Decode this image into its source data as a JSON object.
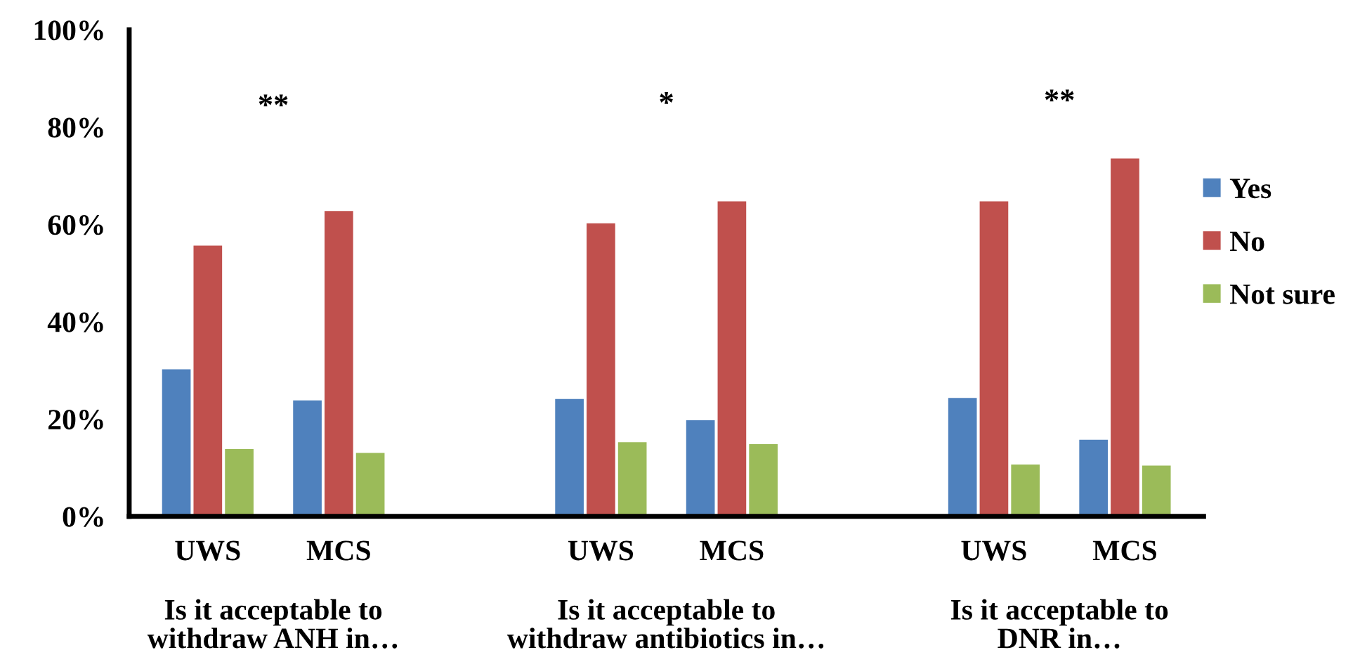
{
  "chart_data": {
    "type": "bar",
    "categories": [
      "UWS",
      "MCS",
      null,
      "UWS",
      "MCS",
      null,
      "UWS",
      "MCS"
    ],
    "series": [
      {
        "name": "Yes",
        "color": "#4f81bd",
        "values": [
          30.4,
          24.0,
          null,
          24.3,
          19.9,
          null,
          24.5,
          15.9
        ]
      },
      {
        "name": "No",
        "color": "#c0504d",
        "values": [
          55.8,
          62.9,
          null,
          60.4,
          64.9,
          null,
          64.9,
          73.7
        ]
      },
      {
        "name": "Not sure",
        "color": "#9bbb59",
        "values": [
          14.0,
          13.2,
          null,
          15.4,
          15.0,
          null,
          10.8,
          10.6
        ]
      }
    ],
    "ylim": [
      0,
      100
    ],
    "yticks": [
      {
        "value": 0,
        "label": "0%"
      },
      {
        "value": 20,
        "label": "20%"
      },
      {
        "value": 40,
        "label": "40%"
      },
      {
        "value": 60,
        "label": "60%"
      },
      {
        "value": 80,
        "label": "80%"
      },
      {
        "value": 100,
        "label": "100%"
      }
    ],
    "annotations": [
      "**",
      "*",
      "**",
      "Is it acceptable to\nwithdraw ANH in…",
      "Is it acceptable to\nwithdraw antibiotics in…",
      "Is it acceptable to\nDNR in…"
    ],
    "grid": false,
    "legend": "right"
  }
}
